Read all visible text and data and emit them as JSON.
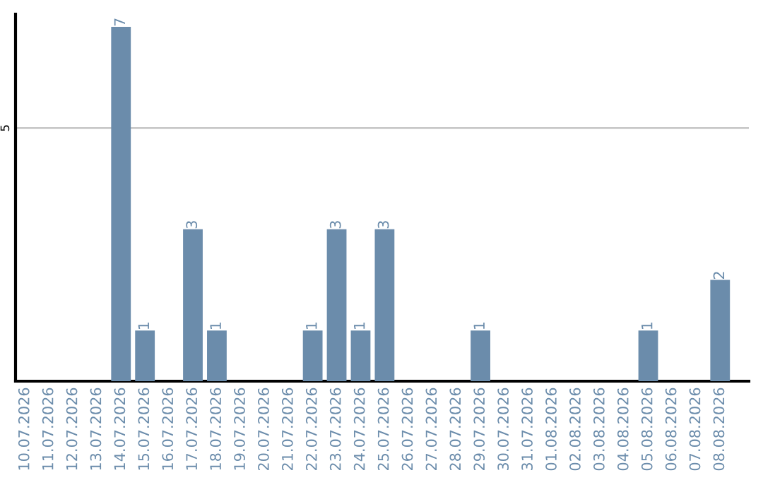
{
  "chart_data": {
    "type": "bar",
    "categories": [
      "10.07.2026",
      "11.07.2026",
      "12.07.2026",
      "13.07.2026",
      "14.07.2026",
      "15.07.2026",
      "16.07.2026",
      "17.07.2026",
      "18.07.2026",
      "19.07.2026",
      "20.07.2026",
      "21.07.2026",
      "22.07.2026",
      "23.07.2026",
      "24.07.2026",
      "25.07.2026",
      "26.07.2026",
      "27.07.2026",
      "28.07.2026",
      "29.07.2026",
      "30.07.2026",
      "31.07.2026",
      "01.08.2026",
      "02.08.2026",
      "03.08.2026",
      "04.08.2026",
      "05.08.2026",
      "06.08.2026",
      "07.08.2026",
      "08.08.2026"
    ],
    "values": [
      0,
      0,
      0,
      0,
      7,
      1,
      0,
      3,
      1,
      0,
      0,
      0,
      1,
      3,
      1,
      3,
      0,
      0,
      0,
      1,
      0,
      0,
      0,
      0,
      0,
      0,
      1,
      0,
      0,
      2
    ],
    "value_labels": [
      null,
      null,
      null,
      null,
      "7",
      "1",
      null,
      "3",
      "1",
      null,
      null,
      null,
      "1",
      "3",
      "1",
      "3",
      null,
      null,
      null,
      "1",
      null,
      null,
      null,
      null,
      null,
      null,
      "1",
      null,
      null,
      "2"
    ],
    "color": "#6b8cab",
    "ylim": [
      0,
      7.25
    ],
    "yticks": [
      5
    ],
    "grid": "y"
  }
}
